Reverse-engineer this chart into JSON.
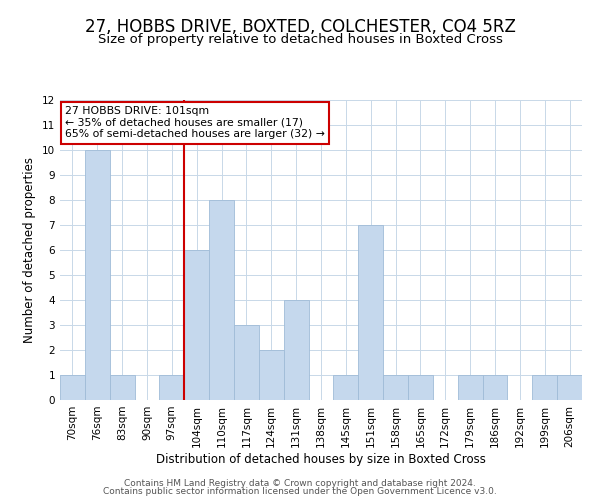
{
  "title": "27, HOBBS DRIVE, BOXTED, COLCHESTER, CO4 5RZ",
  "subtitle": "Size of property relative to detached houses in Boxted Cross",
  "xlabel": "Distribution of detached houses by size in Boxted Cross",
  "ylabel": "Number of detached properties",
  "bin_labels": [
    "70sqm",
    "76sqm",
    "83sqm",
    "90sqm",
    "97sqm",
    "104sqm",
    "110sqm",
    "117sqm",
    "124sqm",
    "131sqm",
    "138sqm",
    "145sqm",
    "151sqm",
    "158sqm",
    "165sqm",
    "172sqm",
    "179sqm",
    "186sqm",
    "192sqm",
    "199sqm",
    "206sqm"
  ],
  "bar_heights": [
    1,
    10,
    1,
    0,
    1,
    6,
    8,
    3,
    2,
    4,
    0,
    1,
    7,
    1,
    1,
    0,
    1,
    1,
    0,
    1,
    1
  ],
  "bar_color": "#c5d8ed",
  "bar_edge_color": "#a0bcd8",
  "red_line_index": 5,
  "ylim": [
    0,
    12
  ],
  "yticks": [
    0,
    1,
    2,
    3,
    4,
    5,
    6,
    7,
    8,
    9,
    10,
    11,
    12
  ],
  "annotation_title": "27 HOBBS DRIVE: 101sqm",
  "annotation_line1": "← 35% of detached houses are smaller (17)",
  "annotation_line2": "65% of semi-detached houses are larger (32) →",
  "annotation_box_color": "#ffffff",
  "annotation_box_edge": "#cc0000",
  "footer1": "Contains HM Land Registry data © Crown copyright and database right 2024.",
  "footer2": "Contains public sector information licensed under the Open Government Licence v3.0.",
  "background_color": "#ffffff",
  "grid_color": "#c8d8e8",
  "title_fontsize": 12,
  "subtitle_fontsize": 9.5,
  "axis_label_fontsize": 8.5,
  "tick_fontsize": 7.5,
  "annotation_fontsize": 7.8,
  "footer_fontsize": 6.5
}
